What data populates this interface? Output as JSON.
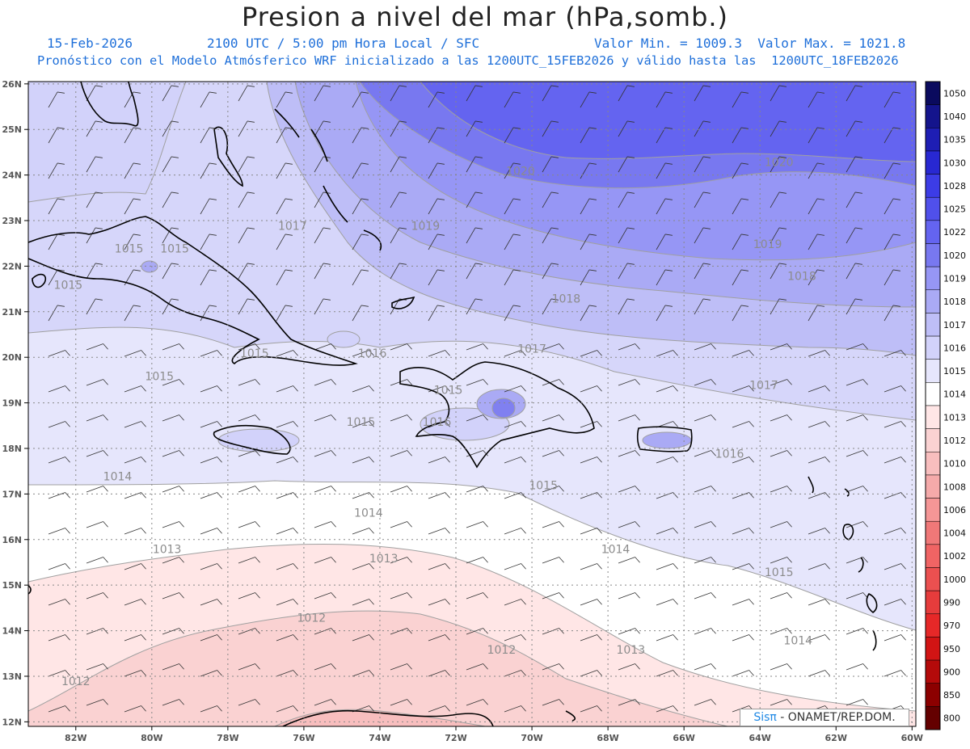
{
  "title": "Presion a nivel del mar (hPa,somb.)",
  "subtitle": {
    "date": "15-Feb-2026",
    "time": "2100 UTC / 5:00 pm Hora Local / SFC",
    "minmax": "Valor Min. = 1009.3  Valor Max. = 1021.8",
    "model": "Pronóstico con el Modelo Atmósferico WRF inicializado a las 1200UTC_15FEB2026 y válido hasta las  1200UTC_18FEB2026"
  },
  "attribution": {
    "brand": "Sisπ",
    "text": " - ONAMET/REP.DOM."
  },
  "map": {
    "lat_labels": [
      "26N",
      "25N",
      "24N",
      "23N",
      "22N",
      "21N",
      "20N",
      "19N",
      "18N",
      "17N",
      "16N",
      "15N",
      "14N",
      "13N",
      "12N"
    ],
    "lon_labels": [
      "82W",
      "80W",
      "78W",
      "76W",
      "74W",
      "72W",
      "70W",
      "68W",
      "66W",
      "64W",
      "62W",
      "60W"
    ],
    "contour_labels": [
      {
        "text": "1020",
        "lon": -70.3,
        "lat": 24.0
      },
      {
        "text": "1020",
        "lon": -63.5,
        "lat": 24.2
      },
      {
        "text": "1019",
        "lon": -72.8,
        "lat": 22.8
      },
      {
        "text": "1019",
        "lon": -63.8,
        "lat": 22.4
      },
      {
        "text": "1017",
        "lon": -76.3,
        "lat": 22.8
      },
      {
        "text": "1018",
        "lon": -69.1,
        "lat": 21.2
      },
      {
        "text": "1018",
        "lon": -62.9,
        "lat": 21.7
      },
      {
        "text": "1017",
        "lon": -70.0,
        "lat": 20.1
      },
      {
        "text": "1017",
        "lon": -63.9,
        "lat": 19.3
      },
      {
        "text": "1015",
        "lon": -80.6,
        "lat": 22.3
      },
      {
        "text": "1015",
        "lon": -79.4,
        "lat": 22.3
      },
      {
        "text": "1015",
        "lon": -82.2,
        "lat": 21.5
      },
      {
        "text": "1015",
        "lon": -77.3,
        "lat": 20.0
      },
      {
        "text": "1016",
        "lon": -74.2,
        "lat": 20.0
      },
      {
        "text": "1015",
        "lon": -79.8,
        "lat": 19.5
      },
      {
        "text": "1015",
        "lon": -72.2,
        "lat": 19.2
      },
      {
        "text": "1015",
        "lon": -74.5,
        "lat": 18.5
      },
      {
        "text": "1016",
        "lon": -72.5,
        "lat": 18.5
      },
      {
        "text": "1016",
        "lon": -64.8,
        "lat": 17.8
      },
      {
        "text": "1014",
        "lon": -80.9,
        "lat": 17.3
      },
      {
        "text": "1015",
        "lon": -69.7,
        "lat": 17.1
      },
      {
        "text": "1014",
        "lon": -74.3,
        "lat": 16.5
      },
      {
        "text": "1014",
        "lon": -67.8,
        "lat": 15.7
      },
      {
        "text": "1015",
        "lon": -63.5,
        "lat": 15.2
      },
      {
        "text": "1013",
        "lon": -79.6,
        "lat": 15.7
      },
      {
        "text": "1013",
        "lon": -73.9,
        "lat": 15.5
      },
      {
        "text": "1012",
        "lon": -75.8,
        "lat": 14.2
      },
      {
        "text": "1012",
        "lon": -70.8,
        "lat": 13.5
      },
      {
        "text": "1013",
        "lon": -67.4,
        "lat": 13.5
      },
      {
        "text": "1014",
        "lon": -63.0,
        "lat": 13.7
      },
      {
        "text": "1012",
        "lon": -82.0,
        "lat": 12.8
      }
    ]
  },
  "colorbar": {
    "labels": [
      "1050",
      "1040",
      "1035",
      "1030",
      "1028",
      "1025",
      "1022",
      "1020",
      "1019",
      "1018",
      "1017",
      "1016",
      "1015",
      "1014",
      "1013",
      "1012",
      "1010",
      "1008",
      "1006",
      "1004",
      "1002",
      "1000",
      "990",
      "970",
      "950",
      "900",
      "850",
      "800"
    ],
    "colors": [
      "#0a0a5e",
      "#14148c",
      "#1e1eb4",
      "#2828d2",
      "#3c3ce6",
      "#5050eb",
      "#6464f0",
      "#7878f0",
      "#9696f5",
      "#aaaaf5",
      "#bebef7",
      "#d2d2fa",
      "#e6e6fc",
      "#ffffff",
      "#ffe6e6",
      "#fad2d2",
      "#f8bebe",
      "#f5aaaa",
      "#f59696",
      "#f07878",
      "#f06464",
      "#eb5050",
      "#e63c3c",
      "#e62828",
      "#d21414",
      "#b40a0a",
      "#8c0000",
      "#640000"
    ]
  },
  "colors": {
    "accent_text": "#1e6fd9",
    "contour": "#9a9a9a",
    "coast": "#000000"
  }
}
